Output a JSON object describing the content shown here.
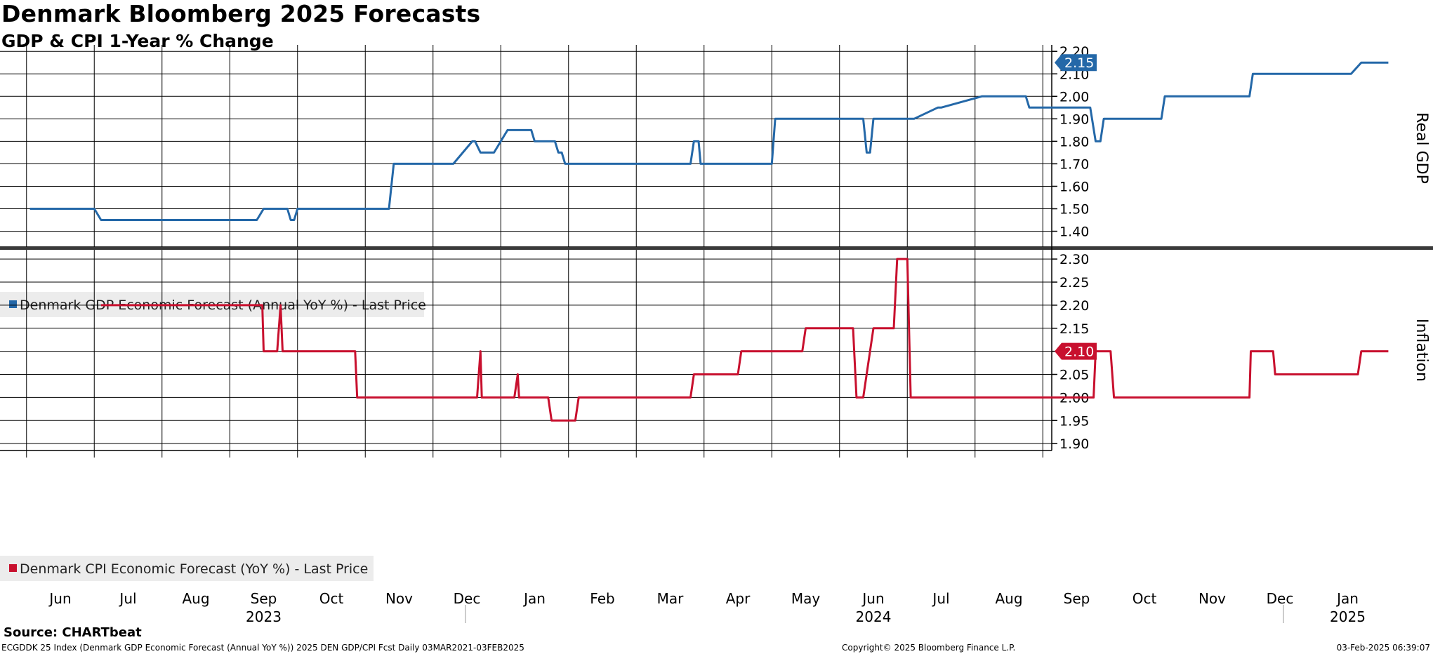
{
  "header": {
    "title": "Denmark Bloomberg 2025 Forecasts",
    "subtitle": "GDP & CPI 1-Year % Change"
  },
  "footer": {
    "source": "Source: CHARTbeat",
    "index_line": "ECGDDK 25 Index (Denmark GDP Economic Forecast (Annual YoY %)) 2025 DEN GDP/CPI Fcst  Daily 03MAR2021-03FEB2025",
    "copyright": "Copyright© 2025 Bloomberg Finance L.P.",
    "timestamp": "03-Feb-2025 06:39:07"
  },
  "colors": {
    "gdp_line": "#2468a8",
    "cpi_line": "#c8102e",
    "grid": "#000000",
    "legend_bg": "#ececec",
    "panel_divider": "#3a3a3a"
  },
  "x_axis": {
    "months": [
      "Jun",
      "Jul",
      "Aug",
      "Sep",
      "Oct",
      "Nov",
      "Dec",
      "Jan",
      "Feb",
      "Mar",
      "Apr",
      "May",
      "Jun",
      "Jul",
      "Aug",
      "Sep",
      "Oct",
      "Nov",
      "Dec",
      "Jan"
    ],
    "years": [
      {
        "label": "2023",
        "month_index": 3
      },
      {
        "label": "2024",
        "month_index": 12
      },
      {
        "label": "2025",
        "month_index": 19
      }
    ]
  },
  "chart_data": [
    {
      "type": "line",
      "panel": "top",
      "ylabel": "Real GDP",
      "ylim": [
        1.33,
        2.21
      ],
      "yticks": [
        "1.40",
        "1.50",
        "1.60",
        "1.70",
        "1.80",
        "1.90",
        "2.00",
        "2.10",
        "2.20"
      ],
      "grid": true,
      "legend_position": "bottom-left",
      "last_value_label": "2.15",
      "series": [
        {
          "name": "Denmark GDP Economic Forecast (Annual YoY %) - Last Price",
          "x_months": [
            -0.45,
            0.5,
            0.6,
            2.9,
            3.0,
            3.35,
            3.4,
            3.45,
            3.5,
            4.85,
            4.92,
            5.0,
            5.8,
            6.08,
            6.12,
            6.2,
            6.24,
            6.4,
            6.6,
            6.68,
            6.8,
            6.95,
            7.0,
            7.3,
            7.35,
            7.4,
            7.45,
            7.5,
            7.55,
            7.6,
            7.9,
            9.3,
            9.35,
            9.42,
            9.45,
            9.5,
            10.0,
            10.5,
            10.55,
            10.85,
            11.5,
            11.85,
            11.9,
            11.95,
            12.0,
            12.2,
            12.3,
            12.6,
            12.95,
            13.0,
            13.6,
            13.9,
            14.25,
            14.3,
            14.9,
            15.2,
            15.28,
            15.35,
            15.4,
            15.5,
            15.9,
            16.25,
            16.3,
            17.0,
            17.55,
            17.6,
            18.7,
            18.75,
            19.05,
            19.2,
            19.3,
            19.6
          ],
          "values": [
            1.5,
            1.5,
            1.45,
            1.45,
            1.5,
            1.5,
            1.45,
            1.45,
            1.5,
            1.5,
            1.7,
            1.7,
            1.7,
            1.8,
            1.8,
            1.75,
            1.75,
            1.75,
            1.85,
            1.85,
            1.85,
            1.85,
            1.8,
            1.8,
            1.75,
            1.75,
            1.7,
            1.7,
            1.7,
            1.7,
            1.7,
            1.7,
            1.8,
            1.8,
            1.7,
            1.7,
            1.7,
            1.7,
            1.9,
            1.9,
            1.9,
            1.9,
            1.75,
            1.75,
            1.9,
            1.9,
            1.9,
            1.9,
            1.95,
            1.95,
            2.0,
            2.0,
            2.0,
            1.95,
            1.95,
            1.95,
            1.8,
            1.8,
            1.9,
            1.9,
            1.9,
            1.9,
            2.0,
            2.0,
            2.0,
            2.1,
            2.1,
            2.1,
            2.1,
            2.15,
            2.15,
            2.15
          ]
        }
      ]
    },
    {
      "type": "line",
      "panel": "bottom",
      "ylabel": "Inflation",
      "ylim": [
        1.885,
        2.32
      ],
      "yticks": [
        "1.90",
        "1.95",
        "2.00",
        "2.05",
        "2.10",
        "2.15",
        "2.20",
        "2.25",
        "2.30"
      ],
      "grid": true,
      "legend_position": "bottom-left",
      "last_value_label": "2.10",
      "series": [
        {
          "name": "Denmark CPI Economic Forecast (YoY %) - Last Price",
          "x_months": [
            0.6,
            2.9,
            2.98,
            3.0,
            3.05,
            3.07,
            3.2,
            3.25,
            3.28,
            3.5,
            4.35,
            4.38,
            4.45,
            5.5,
            6.15,
            6.2,
            6.22,
            6.25,
            6.7,
            6.75,
            6.77,
            6.8,
            7.2,
            7.25,
            7.6,
            7.65,
            9.3,
            9.35,
            10.0,
            10.05,
            10.55,
            10.6,
            10.95,
            11.0,
            11.5,
            11.55,
            11.7,
            11.75,
            11.85,
            12.0,
            12.15,
            12.2,
            12.3,
            12.35,
            12.45,
            12.5,
            12.55,
            13.0,
            15.25,
            15.28,
            15.5,
            15.55,
            16.8,
            17.55,
            17.57,
            17.9,
            17.93,
            18.6,
            19.15,
            19.2,
            19.6
          ],
          "values": [
            2.2,
            2.2,
            2.2,
            2.1,
            2.1,
            2.1,
            2.1,
            2.2,
            2.1,
            2.1,
            2.1,
            2.0,
            2.0,
            2.0,
            2.0,
            2.1,
            2.0,
            2.0,
            2.0,
            2.05,
            2.0,
            2.0,
            2.0,
            1.95,
            1.95,
            2.0,
            2.0,
            2.05,
            2.05,
            2.1,
            2.1,
            2.1,
            2.1,
            2.15,
            2.15,
            2.15,
            2.15,
            2.0,
            2.0,
            2.15,
            2.15,
            2.15,
            2.15,
            2.3,
            2.3,
            2.3,
            2.0,
            2.0,
            2.0,
            2.1,
            2.1,
            2.0,
            2.0,
            2.0,
            2.1,
            2.1,
            2.05,
            2.05,
            2.05,
            2.1,
            2.1
          ]
        }
      ]
    }
  ]
}
